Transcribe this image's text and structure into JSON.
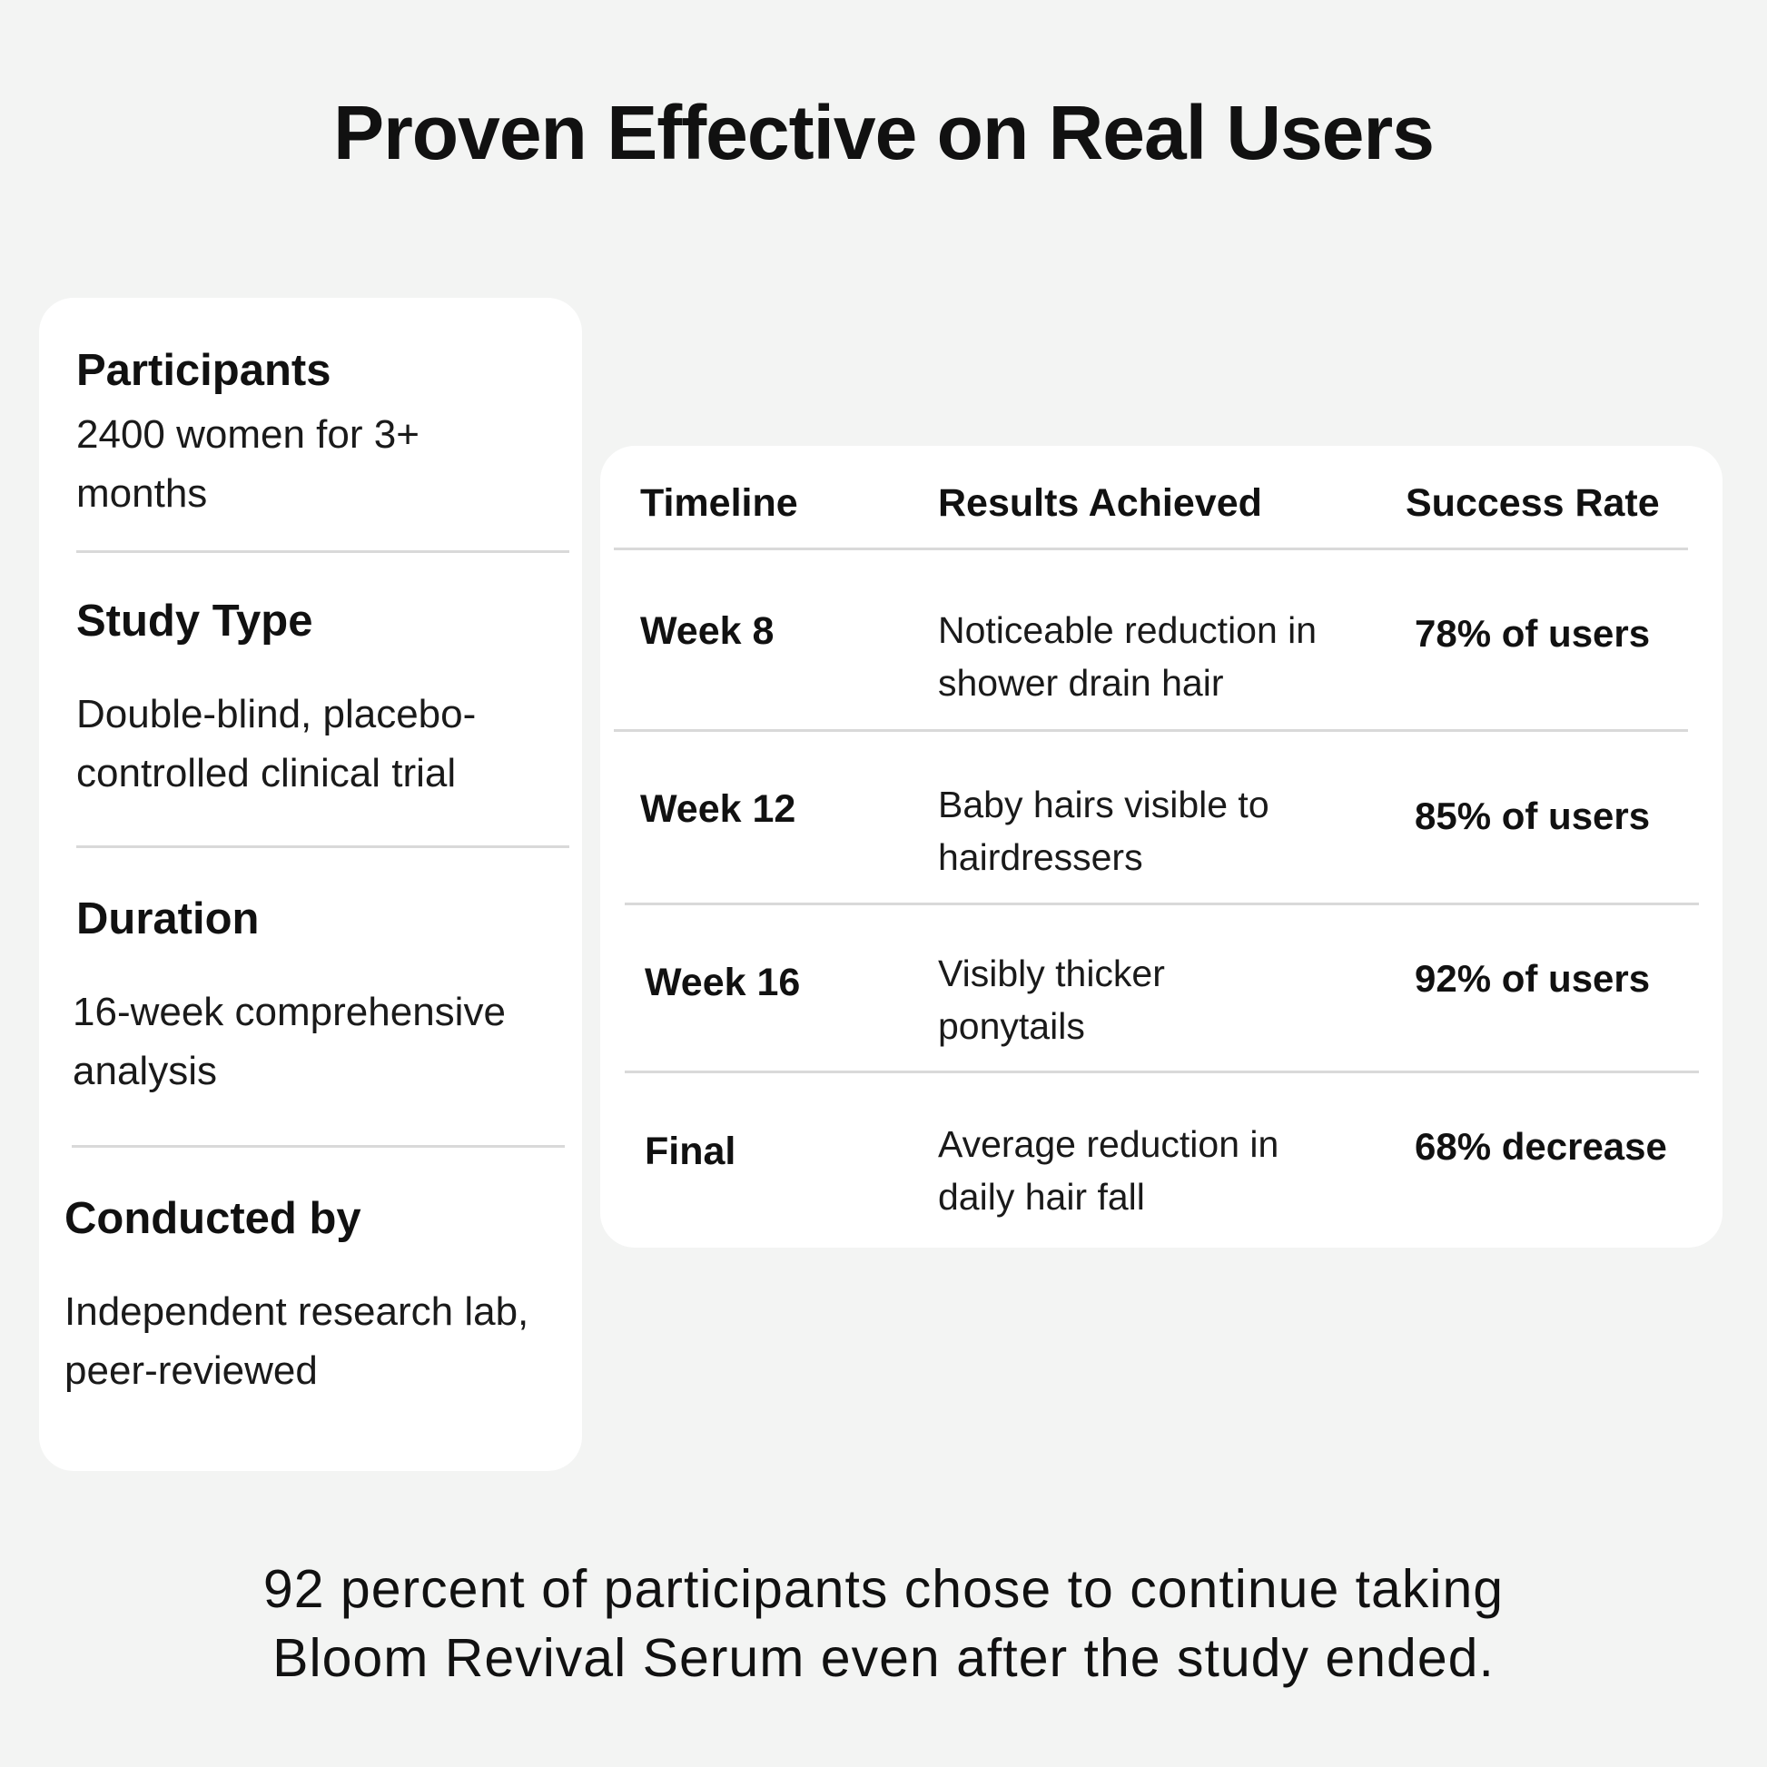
{
  "title": "Proven Effective on Real Users",
  "study": {
    "participants": {
      "label": "Participants",
      "value": "2400 women for 3+ months"
    },
    "study_type": {
      "label": "Study Type",
      "value": "Double-blind, placebo-controlled clinical trial"
    },
    "duration": {
      "label": "Duration",
      "value": "16-week comprehensive analysis"
    },
    "conducted_by": {
      "label": "Conducted by",
      "value": "Independent research lab, peer-reviewed"
    }
  },
  "results": {
    "headers": [
      "Timeline",
      "Results Achieved",
      "Success Rate"
    ],
    "rows": [
      {
        "timeline": "Week 8",
        "result": "Noticeable reduction in shower drain hair",
        "rate": "78% of users"
      },
      {
        "timeline": "Week 12",
        "result": "Baby hairs visible to hairdressers",
        "rate": "85% of users"
      },
      {
        "timeline": "Week 16",
        "result": "Visibly thicker ponytails",
        "rate": "92% of users"
      },
      {
        "timeline": "Final",
        "result": "Average reduction in daily hair fall",
        "rate": "68% decrease"
      }
    ]
  },
  "footer": {
    "note": "92 percent of participants chose to continue taking Bloom Revival Serum even after the study ended."
  }
}
